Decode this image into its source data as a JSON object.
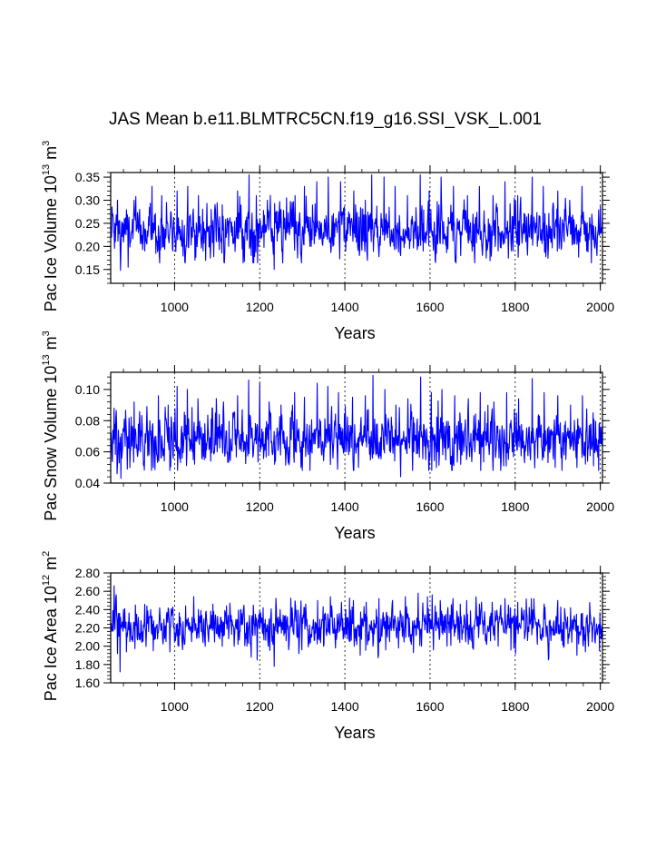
{
  "figure": {
    "title": "JAS Mean b.e11.BLMTRC5CN.f19_g16.SSI_VSK_L.001"
  },
  "chart_data": [
    {
      "type": "line",
      "id": "ice-volume",
      "ylabel": {
        "main": "Pac Ice Volume 10",
        "exp": "13",
        "unit": " m",
        "unit_exp": "3"
      },
      "xlabel": "Years",
      "xlim": [
        850,
        2005
      ],
      "ylim": [
        0.12,
        0.36
      ],
      "xticks": [
        1000,
        1200,
        1400,
        1600,
        1800,
        2000
      ],
      "yticks": [
        0.15,
        0.2,
        0.25,
        0.3,
        0.35
      ],
      "ytick_labels": [
        "0.15",
        "0.20",
        "0.25",
        "0.30",
        "0.35"
      ],
      "y_minor_step": 0.01,
      "x_minor_step": 40,
      "grid": "vertical dashed at major x ticks",
      "line_color": "#0000ff",
      "mean": 0.235,
      "sd": 0.027,
      "min": 0.148,
      "max": 0.355,
      "anchors": [
        [
          852,
          0.22
        ],
        [
          855,
          0.27
        ],
        [
          861,
          0.21
        ],
        [
          866,
          0.3
        ],
        [
          873,
          0.148
        ],
        [
          882,
          0.26
        ],
        [
          891,
          0.155
        ],
        [
          905,
          0.3
        ],
        [
          915,
          0.23
        ],
        [
          930,
          0.19
        ],
        [
          947,
          0.33
        ],
        [
          958,
          0.21
        ],
        [
          970,
          0.31
        ],
        [
          985,
          0.22
        ],
        [
          996,
          0.19
        ],
        [
          1006,
          0.32
        ],
        [
          1017,
          0.2
        ],
        [
          1031,
          0.33
        ],
        [
          1042,
          0.22
        ],
        [
          1056,
          0.31
        ],
        [
          1067,
          0.19
        ],
        [
          1086,
          0.28
        ],
        [
          1098,
          0.21
        ],
        [
          1112,
          0.29
        ],
        [
          1127,
          0.2
        ],
        [
          1148,
          0.32
        ],
        [
          1163,
          0.2
        ],
        [
          1175,
          0.355
        ],
        [
          1180,
          0.18
        ],
        [
          1192,
          0.31
        ],
        [
          1205,
          0.22
        ],
        [
          1218,
          0.3
        ],
        [
          1234,
          0.15
        ],
        [
          1250,
          0.28
        ],
        [
          1268,
          0.23
        ],
        [
          1283,
          0.31
        ],
        [
          1297,
          0.18
        ],
        [
          1305,
          0.33
        ],
        [
          1318,
          0.2
        ],
        [
          1334,
          0.34
        ],
        [
          1346,
          0.22
        ],
        [
          1361,
          0.35
        ],
        [
          1372,
          0.2
        ],
        [
          1390,
          0.34
        ],
        [
          1402,
          0.19
        ],
        [
          1421,
          0.32
        ],
        [
          1434,
          0.18
        ],
        [
          1448,
          0.3
        ],
        [
          1463,
          0.355
        ],
        [
          1476,
          0.22
        ],
        [
          1492,
          0.35
        ],
        [
          1507,
          0.2
        ],
        [
          1518,
          0.33
        ],
        [
          1531,
          0.18
        ],
        [
          1547,
          0.31
        ],
        [
          1560,
          0.24
        ],
        [
          1577,
          0.355
        ],
        [
          1584,
          0.19
        ],
        [
          1598,
          0.32
        ],
        [
          1612,
          0.17
        ],
        [
          1626,
          0.35
        ],
        [
          1640,
          0.21
        ],
        [
          1655,
          0.33
        ],
        [
          1672,
          0.18
        ],
        [
          1688,
          0.31
        ],
        [
          1702,
          0.2
        ],
        [
          1716,
          0.33
        ],
        [
          1731,
          0.22
        ],
        [
          1748,
          0.31
        ],
        [
          1760,
          0.19
        ],
        [
          1776,
          0.34
        ],
        [
          1790,
          0.21
        ],
        [
          1806,
          0.31
        ],
        [
          1822,
          0.23
        ],
        [
          1840,
          0.35
        ],
        [
          1852,
          0.2
        ],
        [
          1866,
          0.33
        ],
        [
          1883,
          0.22
        ],
        [
          1900,
          0.32
        ],
        [
          1915,
          0.21
        ],
        [
          1928,
          0.3
        ],
        [
          1942,
          0.24
        ],
        [
          1957,
          0.33
        ],
        [
          1968,
          0.19
        ],
        [
          1980,
          0.27
        ],
        [
          1992,
          0.18
        ],
        [
          2003,
          0.24
        ]
      ]
    },
    {
      "type": "line",
      "id": "snow-volume",
      "ylabel": {
        "main": "Pac Snow Volume 10",
        "exp": "13",
        "unit": " m",
        "unit_exp": "3"
      },
      "xlabel": "Years",
      "xlim": [
        850,
        2005
      ],
      "ylim": [
        0.04,
        0.111
      ],
      "xticks": [
        1000,
        1200,
        1400,
        1600,
        1800,
        2000
      ],
      "yticks": [
        0.04,
        0.06,
        0.08,
        0.1
      ],
      "ytick_labels": [
        "0.04",
        "0.06",
        "0.08",
        "0.10"
      ],
      "y_minor_step": 0.004,
      "x_minor_step": 40,
      "grid": "vertical dashed at major x ticks",
      "line_color": "#0000ff",
      "mean": 0.0685,
      "sd": 0.0085,
      "min": 0.043,
      "max": 0.109,
      "anchors": [
        [
          852,
          0.066
        ],
        [
          858,
          0.088
        ],
        [
          865,
          0.046
        ],
        [
          874,
          0.043
        ],
        [
          882,
          0.081
        ],
        [
          895,
          0.05
        ],
        [
          905,
          0.092
        ],
        [
          920,
          0.06
        ],
        [
          935,
          0.089
        ],
        [
          950,
          0.05
        ],
        [
          962,
          0.096
        ],
        [
          974,
          0.062
        ],
        [
          985,
          0.09
        ],
        [
          996,
          0.058
        ],
        [
          1006,
          0.102
        ],
        [
          1018,
          0.056
        ],
        [
          1030,
          0.1
        ],
        [
          1042,
          0.06
        ],
        [
          1055,
          0.094
        ],
        [
          1070,
          0.055
        ],
        [
          1088,
          0.088
        ],
        [
          1100,
          0.06
        ],
        [
          1115,
          0.092
        ],
        [
          1130,
          0.056
        ],
        [
          1148,
          0.096
        ],
        [
          1162,
          0.06
        ],
        [
          1174,
          0.106
        ],
        [
          1185,
          0.058
        ],
        [
          1200,
          0.104
        ],
        [
          1210,
          0.06
        ],
        [
          1222,
          0.092
        ],
        [
          1235,
          0.052
        ],
        [
          1250,
          0.09
        ],
        [
          1265,
          0.06
        ],
        [
          1282,
          0.098
        ],
        [
          1297,
          0.05
        ],
        [
          1305,
          0.095
        ],
        [
          1320,
          0.06
        ],
        [
          1335,
          0.104
        ],
        [
          1346,
          0.058
        ],
        [
          1360,
          0.102
        ],
        [
          1372,
          0.056
        ],
        [
          1385,
          0.098
        ],
        [
          1400,
          0.06
        ],
        [
          1418,
          0.095
        ],
        [
          1432,
          0.05
        ],
        [
          1448,
          0.096
        ],
        [
          1466,
          0.109
        ],
        [
          1478,
          0.058
        ],
        [
          1494,
          0.1
        ],
        [
          1508,
          0.062
        ],
        [
          1520,
          0.09
        ],
        [
          1531,
          0.044
        ],
        [
          1548,
          0.094
        ],
        [
          1562,
          0.06
        ],
        [
          1578,
          0.108
        ],
        [
          1590,
          0.055
        ],
        [
          1603,
          0.098
        ],
        [
          1615,
          0.05
        ],
        [
          1628,
          0.1
        ],
        [
          1642,
          0.062
        ],
        [
          1658,
          0.096
        ],
        [
          1672,
          0.052
        ],
        [
          1690,
          0.094
        ],
        [
          1705,
          0.06
        ],
        [
          1718,
          0.098
        ],
        [
          1732,
          0.064
        ],
        [
          1750,
          0.092
        ],
        [
          1762,
          0.056
        ],
        [
          1780,
          0.098
        ],
        [
          1793,
          0.06
        ],
        [
          1808,
          0.094
        ],
        [
          1823,
          0.064
        ],
        [
          1840,
          0.107
        ],
        [
          1853,
          0.056
        ],
        [
          1868,
          0.098
        ],
        [
          1883,
          0.062
        ],
        [
          1900,
          0.096
        ],
        [
          1915,
          0.058
        ],
        [
          1930,
          0.09
        ],
        [
          1945,
          0.05
        ],
        [
          1958,
          0.096
        ],
        [
          1970,
          0.054
        ],
        [
          1983,
          0.085
        ],
        [
          1996,
          0.048
        ],
        [
          2004,
          0.064
        ]
      ]
    },
    {
      "type": "line",
      "id": "ice-area",
      "ylabel": {
        "main": "Pac Ice Area 10",
        "exp": "12",
        "unit": " m",
        "unit_exp": "2"
      },
      "xlabel": "Years",
      "xlim": [
        850,
        2005
      ],
      "ylim": [
        1.6,
        2.8
      ],
      "xticks": [
        1000,
        1200,
        1400,
        1600,
        1800,
        2000
      ],
      "yticks": [
        1.6,
        1.8,
        2.0,
        2.2,
        2.4,
        2.6,
        2.8
      ],
      "ytick_labels": [
        "1.60",
        "1.80",
        "2.00",
        "2.20",
        "2.40",
        "2.60",
        "2.80"
      ],
      "y_minor_step": 0.04,
      "x_minor_step": 40,
      "grid": "vertical dashed at major x ticks",
      "line_color": "#0000ff",
      "mean": 2.22,
      "sd": 0.11,
      "min": 1.72,
      "max": 2.66,
      "anchors": [
        [
          852,
          2.2
        ],
        [
          858,
          2.66
        ],
        [
          866,
          1.92
        ],
        [
          872,
          1.72
        ],
        [
          880,
          2.4
        ],
        [
          895,
          2.05
        ],
        [
          908,
          2.45
        ],
        [
          920,
          2.1
        ],
        [
          935,
          2.44
        ],
        [
          950,
          1.95
        ],
        [
          965,
          2.42
        ],
        [
          980,
          2.05
        ],
        [
          995,
          2.4
        ],
        [
          1010,
          2.0
        ],
        [
          1026,
          2.44
        ],
        [
          1040,
          2.05
        ],
        [
          1056,
          2.4
        ],
        [
          1072,
          2.0
        ],
        [
          1090,
          2.46
        ],
        [
          1106,
          2.08
        ],
        [
          1122,
          2.44
        ],
        [
          1140,
          2.0
        ],
        [
          1156,
          2.4
        ],
        [
          1170,
          2.0
        ],
        [
          1180,
          1.88
        ],
        [
          1194,
          1.85
        ],
        [
          1208,
          2.42
        ],
        [
          1220,
          2.0
        ],
        [
          1234,
          1.78
        ],
        [
          1248,
          2.4
        ],
        [
          1262,
          2.06
        ],
        [
          1276,
          2.42
        ],
        [
          1292,
          1.92
        ],
        [
          1308,
          2.46
        ],
        [
          1322,
          2.1
        ],
        [
          1336,
          2.5
        ],
        [
          1350,
          2.0
        ],
        [
          1366,
          2.54
        ],
        [
          1378,
          1.98
        ],
        [
          1392,
          2.48
        ],
        [
          1406,
          2.08
        ],
        [
          1420,
          2.5
        ],
        [
          1436,
          1.9
        ],
        [
          1450,
          2.48
        ],
        [
          1466,
          2.0
        ],
        [
          1480,
          2.52
        ],
        [
          1496,
          1.96
        ],
        [
          1512,
          2.5
        ],
        [
          1526,
          1.98
        ],
        [
          1542,
          2.54
        ],
        [
          1556,
          2.02
        ],
        [
          1572,
          2.58
        ],
        [
          1580,
          2.0
        ],
        [
          1594,
          2.54
        ],
        [
          1608,
          1.96
        ],
        [
          1624,
          2.5
        ],
        [
          1640,
          2.0
        ],
        [
          1654,
          2.52
        ],
        [
          1670,
          2.04
        ],
        [
          1686,
          2.5
        ],
        [
          1700,
          1.98
        ],
        [
          1716,
          2.46
        ],
        [
          1730,
          2.06
        ],
        [
          1746,
          2.48
        ],
        [
          1760,
          2.0
        ],
        [
          1776,
          2.52
        ],
        [
          1790,
          1.96
        ],
        [
          1806,
          2.48
        ],
        [
          1822,
          2.08
        ],
        [
          1838,
          2.52
        ],
        [
          1852,
          2.02
        ],
        [
          1868,
          2.46
        ],
        [
          1884,
          2.06
        ],
        [
          1900,
          2.5
        ],
        [
          1915,
          2.0
        ],
        [
          1930,
          2.42
        ],
        [
          1945,
          1.9
        ],
        [
          1958,
          2.36
        ],
        [
          1972,
          2.0
        ],
        [
          1986,
          2.3
        ],
        [
          1998,
          1.95
        ],
        [
          2004,
          2.2
        ]
      ]
    }
  ]
}
